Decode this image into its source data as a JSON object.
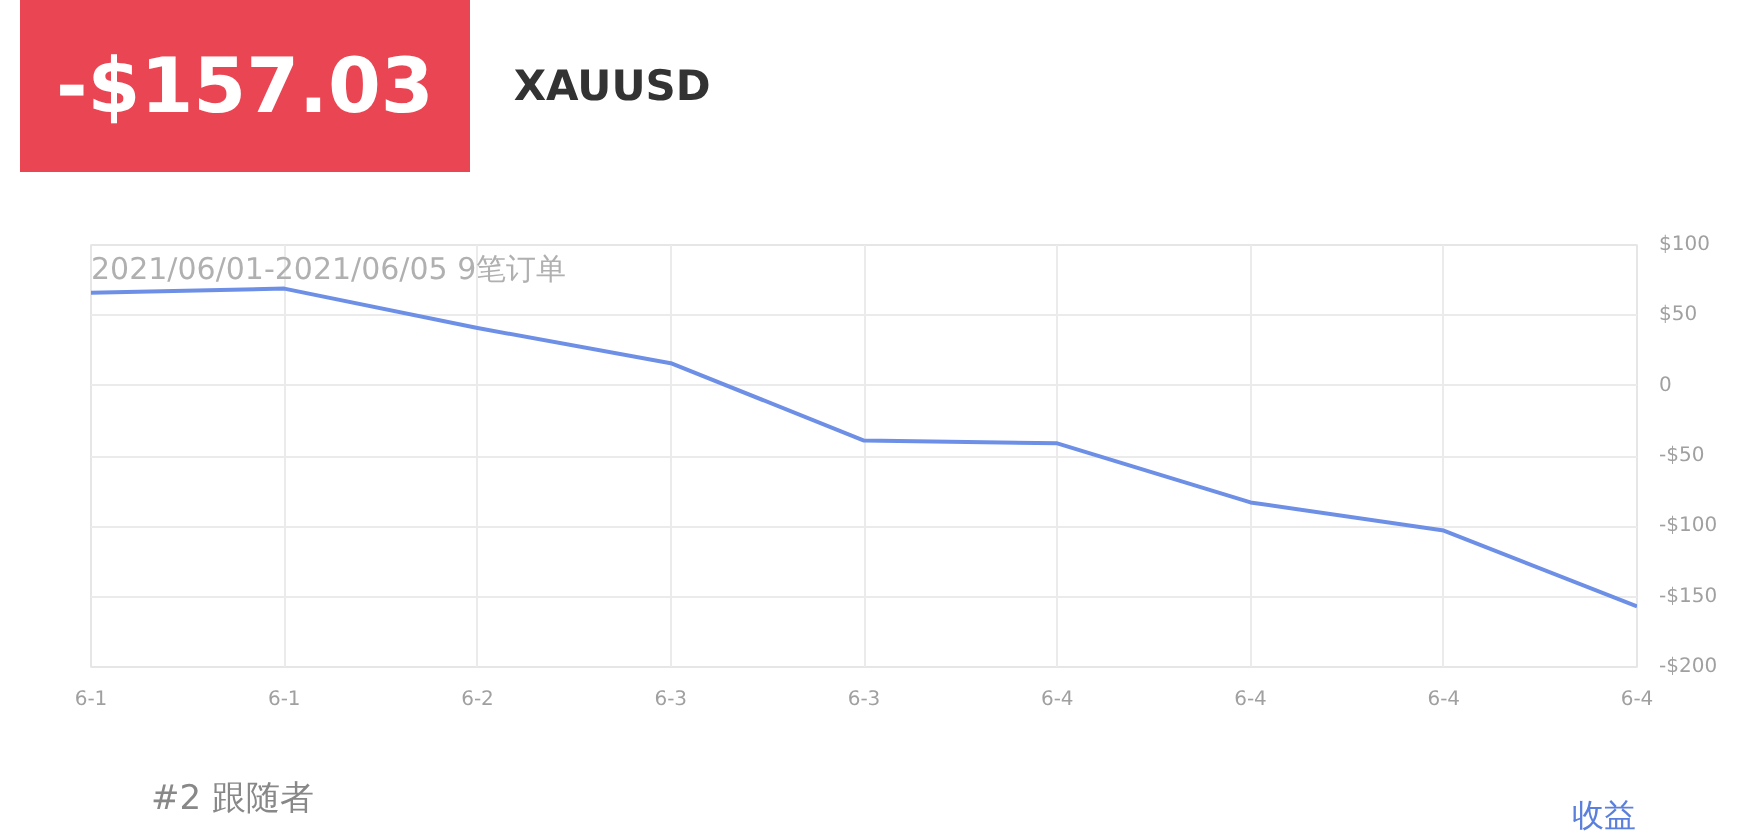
{
  "chart_data": {
    "type": "line",
    "title": "-$157.03",
    "subtitle": "XAUUSD",
    "annotations": [
      "2021/06/01-2021/06/05 9笔订单",
      "#2    跟随者"
    ],
    "categories": [
      "6-1",
      "6-1",
      "6-2",
      "6-3",
      "6-3",
      "6-4",
      "6-4",
      "6-4",
      "6-4"
    ],
    "series": [
      {
        "name": "收益",
        "color": "#6d8fe6",
        "values": [
          66,
          69,
          41,
          16,
          -39,
          -41,
          -83,
          -103,
          -157
        ]
      }
    ],
    "ylim": [
      -200,
      100
    ],
    "yticks": [
      {
        "value": 100,
        "label": "$100"
      },
      {
        "value": 50,
        "label": "$50"
      },
      0,
      {
        "value": -50,
        "label": "-$50"
      },
      {
        "value": -100,
        "label": "-$100"
      },
      {
        "value": -150,
        "label": "-$150"
      },
      {
        "value": -200,
        "label": "-$200"
      }
    ],
    "grid": true,
    "legend": "bottom right",
    "marker": "none",
    "line_style": "solid"
  }
}
